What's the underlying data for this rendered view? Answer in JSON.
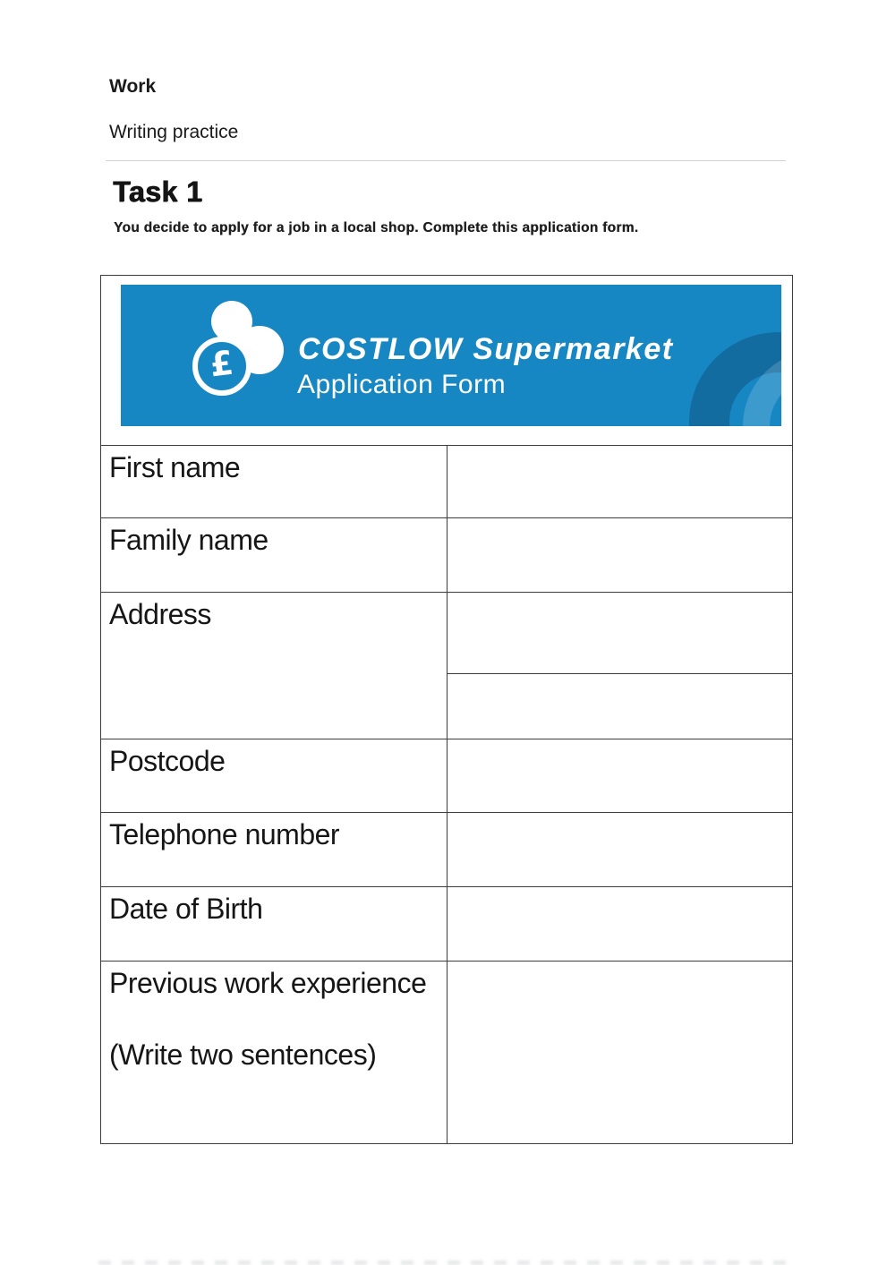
{
  "document": {
    "section_heading": "Work",
    "subtitle": "Writing practice",
    "task": {
      "title": "Task 1",
      "instruction": "You decide to apply for a job in a local shop. Complete this application form."
    }
  },
  "banner": {
    "brand_name": "COSTLOW Supermarket",
    "form_title": "Application Form",
    "logo_currency_symbol": "£",
    "colors": {
      "background": "#1787c4",
      "text": "#ffffff",
      "watermark_dark": "rgba(10,56,92,0.34)",
      "watermark_light": "rgba(255,255,255,0.16)"
    }
  },
  "form": {
    "fields": [
      {
        "label": "First name",
        "value": ""
      },
      {
        "label": "Family name",
        "value": ""
      },
      {
        "label": "Address",
        "value_line1": "",
        "value_line2": ""
      },
      {
        "label": "Postcode",
        "value": ""
      },
      {
        "label": "Telephone number",
        "value": ""
      },
      {
        "label": "Date of Birth",
        "value": ""
      },
      {
        "label": "Previous work experience",
        "note": "(Write two sentences)",
        "value": ""
      }
    ]
  }
}
